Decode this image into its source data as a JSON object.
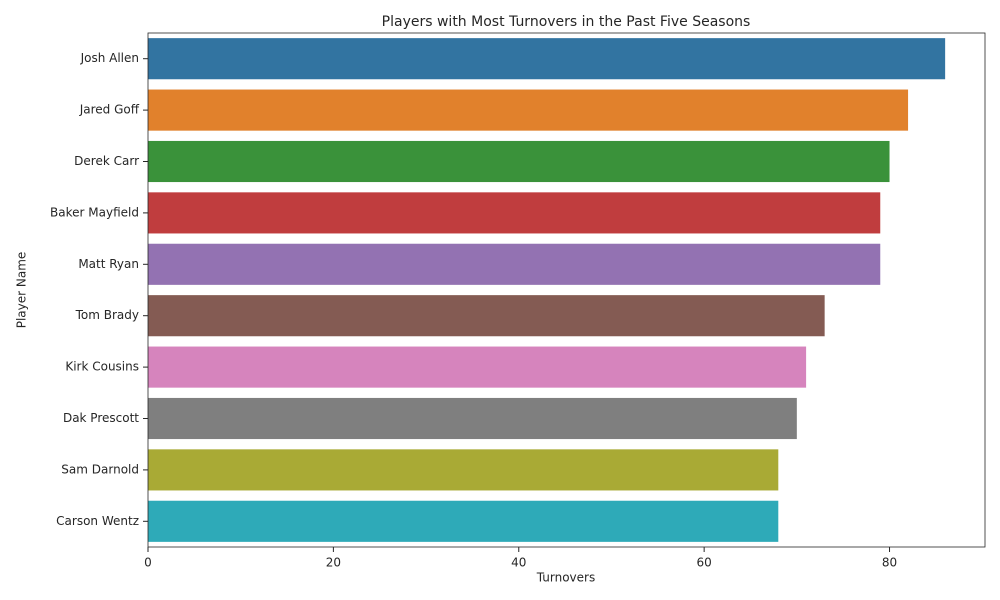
{
  "chart_data": {
    "type": "bar",
    "orientation": "horizontal",
    "title": "Players with Most Turnovers in the Past Five Seasons",
    "x_label": "Turnovers",
    "y_label": "Player Name",
    "categories": [
      "Josh Allen",
      "Jared Goff",
      "Derek Carr",
      "Baker Mayfield",
      "Matt Ryan",
      "Tom Brady",
      "Kirk Cousins",
      "Dak Prescott",
      "Sam Darnold",
      "Carson Wentz"
    ],
    "values": [
      86,
      82,
      80,
      79,
      79,
      73,
      71,
      70,
      68,
      68
    ],
    "colors": [
      "#3274a1",
      "#e1812c",
      "#3a923a",
      "#c03d3e",
      "#9372b2",
      "#845b53",
      "#d684bd",
      "#7f7f7f",
      "#a9aa35",
      "#2eaab8"
    ],
    "xlim": [
      0,
      90.3
    ],
    "xticks": [
      0,
      20,
      40,
      60,
      80
    ],
    "grid": false
  }
}
